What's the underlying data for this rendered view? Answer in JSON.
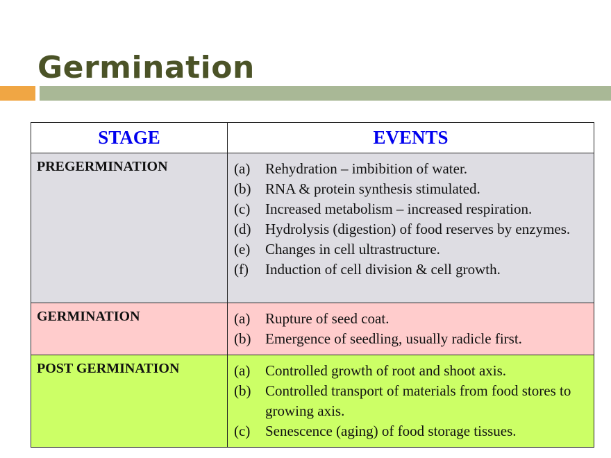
{
  "title": "Germination",
  "colors": {
    "title": "#4b5327",
    "accent_orange": "#f0a644",
    "accent_green": "#a9b896",
    "header_text": "#0000ee",
    "pregermination_bg": "#dedde3",
    "germination_bg": "#ffcccc",
    "post_germination_bg": "#ccff66"
  },
  "table": {
    "headers": [
      "STAGE",
      "EVENTS"
    ],
    "rows": [
      {
        "stage": "PREGERMINATION",
        "events": [
          {
            "label": "(a)",
            "text": "Rehydration – imbibition of water."
          },
          {
            "label": "(b)",
            "text": "RNA & protein synthesis stimulated."
          },
          {
            "label": "(c)",
            "text": "Increased metabolism – increased respiration."
          },
          {
            "label": "(d)",
            "text": "Hydrolysis (digestion) of food reserves by enzymes."
          },
          {
            "label": "(e)",
            "text": "Changes in cell ultrastructure."
          },
          {
            "label": "(f)",
            "text": "Induction of cell division & cell growth."
          }
        ]
      },
      {
        "stage": "GERMINATION",
        "events": [
          {
            "label": "(a)",
            "text": "Rupture of seed coat."
          },
          {
            "label": "(b)",
            "text": "Emergence of seedling, usually radicle first."
          }
        ]
      },
      {
        "stage": "POST GERMINATION",
        "events": [
          {
            "label": "(a)",
            "text": "Controlled growth of root and shoot axis."
          },
          {
            "label": "(b)",
            "text": "Controlled transport of materials from food stores to growing axis."
          },
          {
            "label": "(c)",
            "text": "Senescence (aging) of food storage tissues."
          }
        ]
      }
    ]
  }
}
